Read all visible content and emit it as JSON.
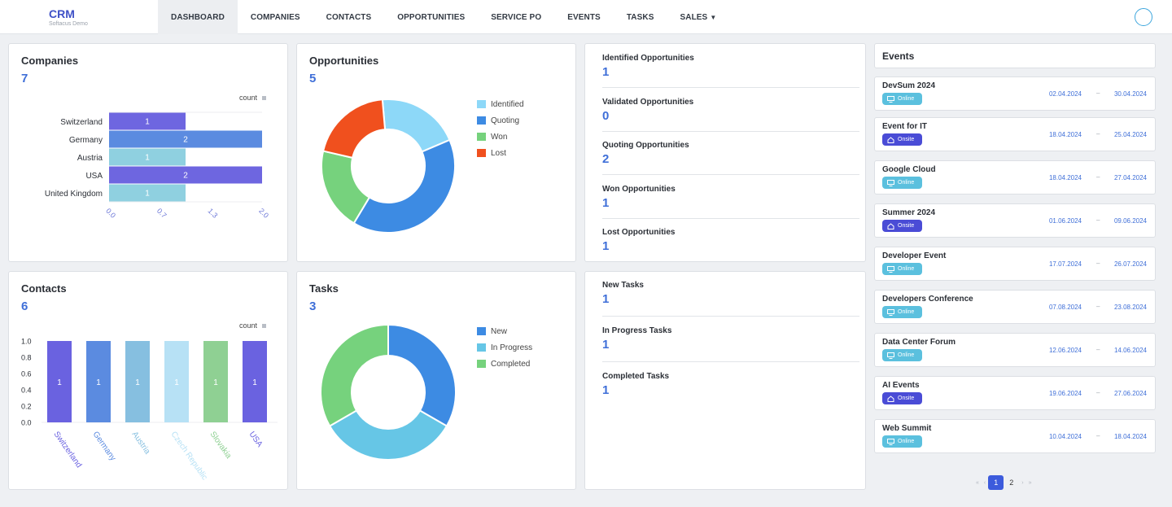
{
  "brand": {
    "title": "CRM",
    "subtitle": "Softacus Demo"
  },
  "nav": {
    "items": [
      {
        "label": "DASHBOARD",
        "active": true
      },
      {
        "label": "COMPANIES"
      },
      {
        "label": "CONTACTS"
      },
      {
        "label": "OPPORTUNITIES"
      },
      {
        "label": "SERVICE PO"
      },
      {
        "label": "EVENTS"
      },
      {
        "label": "TASKS"
      },
      {
        "label": "SALES"
      }
    ]
  },
  "companies": {
    "title": "Companies",
    "count": "7",
    "legend": "count",
    "chart_data": {
      "type": "bar",
      "orientation": "horizontal",
      "categories": [
        "Switzerland",
        "Germany",
        "Austria",
        "USA",
        "United Kingdom"
      ],
      "values": [
        1,
        2,
        1,
        2,
        1
      ],
      "xticks": [
        "0.0",
        "0.7",
        "1.3",
        "2.0"
      ],
      "xlim": [
        0,
        2
      ],
      "colors": [
        "#6e66e0",
        "#5b8be0",
        "#8fd0e0",
        "#6e66e0",
        "#8fd0e0"
      ],
      "legend": "count"
    }
  },
  "opportunities": {
    "title": "Opportunities",
    "count": "5",
    "chart_data": {
      "type": "pie",
      "donut": true,
      "labels": [
        "Identified",
        "Quoting",
        "Won",
        "Lost"
      ],
      "values": [
        1,
        2,
        1,
        1
      ],
      "colors": [
        "#8dd8f8",
        "#3d8be3",
        "#76d27d",
        "#f0501e"
      ]
    }
  },
  "opp_stats": [
    {
      "label": "Identified Opportunities",
      "value": "1"
    },
    {
      "label": "Validated Opportunities",
      "value": "0"
    },
    {
      "label": "Quoting Opportunities",
      "value": "2"
    },
    {
      "label": "Won Opportunities",
      "value": "1"
    },
    {
      "label": "Lost Opportunities",
      "value": "1"
    }
  ],
  "contacts": {
    "title": "Contacts",
    "count": "6",
    "legend": "count",
    "chart_data": {
      "type": "bar",
      "orientation": "vertical",
      "categories": [
        "Switzerland",
        "Germany",
        "Austria",
        "Czech Republic",
        "Slovakia",
        "USA"
      ],
      "values": [
        1,
        1,
        1,
        1,
        1,
        1
      ],
      "yticks": [
        "1.0",
        "0.8",
        "0.6",
        "0.4",
        "0.2",
        "0.0"
      ],
      "ylim": [
        0,
        1
      ],
      "colors": [
        "#6a62e0",
        "#5b8be0",
        "#86bfe0",
        "#b7e1f5",
        "#8fd093",
        "#6a62e0"
      ],
      "legend": "count"
    }
  },
  "tasks": {
    "title": "Tasks",
    "count": "3",
    "chart_data": {
      "type": "pie",
      "donut": true,
      "labels": [
        "New",
        "In Progress",
        "Completed"
      ],
      "values": [
        1,
        1,
        1
      ],
      "colors": [
        "#3d8be3",
        "#66c6e6",
        "#76d27d"
      ]
    }
  },
  "task_stats": [
    {
      "label": "New Tasks",
      "value": "1"
    },
    {
      "label": "In Progress Tasks",
      "value": "1"
    },
    {
      "label": "Completed Tasks",
      "value": "1"
    }
  ],
  "events": {
    "title": "Events",
    "dash": "–",
    "items": [
      {
        "name": "DevSum 2024",
        "type": "Online",
        "start": "02.04.2024",
        "end": "30.04.2024"
      },
      {
        "name": "Event for IT",
        "type": "Onsite",
        "start": "18.04.2024",
        "end": "25.04.2024"
      },
      {
        "name": "Google Cloud",
        "type": "Online",
        "start": "18.04.2024",
        "end": "27.04.2024"
      },
      {
        "name": "Summer 2024",
        "type": "Onsite",
        "start": "01.06.2024",
        "end": "09.06.2024"
      },
      {
        "name": "Developer Event",
        "type": "Online",
        "start": "17.07.2024",
        "end": "26.07.2024"
      },
      {
        "name": "Developers Conference",
        "type": "Online",
        "start": "07.08.2024",
        "end": "23.08.2024"
      },
      {
        "name": "Data Center Forum",
        "type": "Online",
        "start": "12.06.2024",
        "end": "14.06.2024"
      },
      {
        "name": "AI Events",
        "type": "Onsite",
        "start": "19.06.2024",
        "end": "27.06.2024"
      },
      {
        "name": "Web Summit",
        "type": "Online",
        "start": "10.04.2024",
        "end": "18.04.2024"
      }
    ]
  },
  "pagination": {
    "pages": [
      "1",
      "2"
    ],
    "current": "1"
  }
}
